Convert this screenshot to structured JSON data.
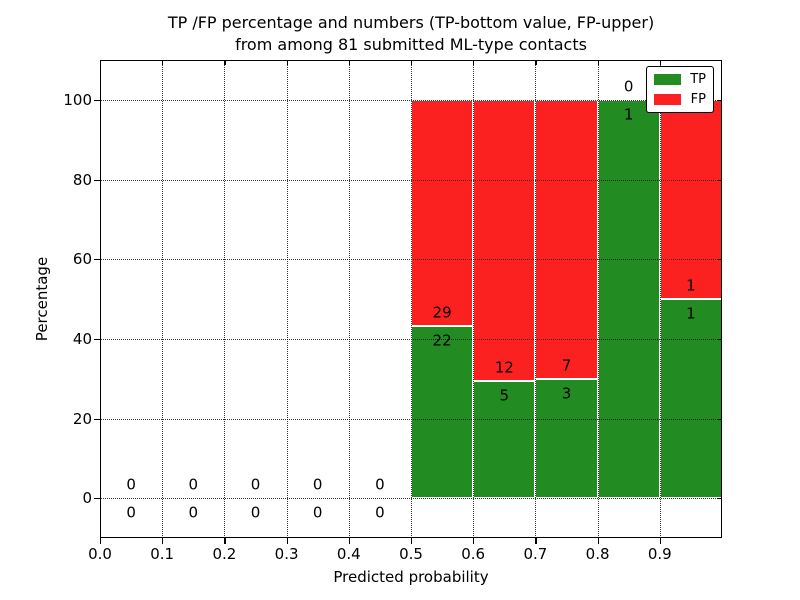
{
  "figure": {
    "title_line1": "TP /FP percentage and numbers (TP-bottom value, FP-upper)",
    "title_line2": "from among 81 submitted ML-type contacts"
  },
  "chart_data": {
    "type": "bar",
    "stacked": true,
    "title": "TP /FP percentage and numbers (TP-bottom value, FP-upper) from among 81 submitted ML-type contacts",
    "xlabel": "Predicted probability",
    "ylabel": "Percentage",
    "xlim": [
      0.0,
      1.0
    ],
    "ylim": [
      -10,
      110
    ],
    "x_tick_labels": [
      "0.0",
      "0.1",
      "0.2",
      "0.3",
      "0.4",
      "0.5",
      "0.6",
      "0.7",
      "0.8",
      "0.9"
    ],
    "x_tick_values": [
      0.0,
      0.1,
      0.2,
      0.3,
      0.4,
      0.5,
      0.6,
      0.7,
      0.8,
      0.9
    ],
    "y_tick_labels": [
      "0",
      "20",
      "40",
      "60",
      "80",
      "100"
    ],
    "y_tick_values": [
      0,
      20,
      40,
      60,
      80,
      100
    ],
    "grid": "dotted both axes, drawn above bars",
    "bin_width": 0.1,
    "colors": {
      "tp": "#228b22",
      "fp": "#fb2121"
    },
    "bins": [
      {
        "x0": 0.0,
        "tp_count": 0,
        "fp_count": 0,
        "tp_pct": null,
        "fp_pct": null
      },
      {
        "x0": 0.1,
        "tp_count": 0,
        "fp_count": 0,
        "tp_pct": null,
        "fp_pct": null
      },
      {
        "x0": 0.2,
        "tp_count": 0,
        "fp_count": 0,
        "tp_pct": null,
        "fp_pct": null
      },
      {
        "x0": 0.3,
        "tp_count": 0,
        "fp_count": 0,
        "tp_pct": null,
        "fp_pct": null
      },
      {
        "x0": 0.4,
        "tp_count": 0,
        "fp_count": 0,
        "tp_pct": null,
        "fp_pct": null
      },
      {
        "x0": 0.5,
        "tp_count": 22,
        "fp_count": 29,
        "tp_pct": 43.1,
        "fp_pct": 56.9
      },
      {
        "x0": 0.6,
        "tp_count": 5,
        "fp_count": 12,
        "tp_pct": 29.4,
        "fp_pct": 70.6
      },
      {
        "x0": 0.7,
        "tp_count": 3,
        "fp_count": 7,
        "tp_pct": 30.0,
        "fp_pct": 70.0
      },
      {
        "x0": 0.8,
        "tp_count": 1,
        "fp_count": 0,
        "tp_pct": 100.0,
        "fp_pct": 0.0
      },
      {
        "x0": 0.9,
        "tp_count": 1,
        "fp_count": 1,
        "tp_pct": 50.0,
        "fp_pct": 50.0
      }
    ],
    "legend": {
      "position": "upper right",
      "entries": [
        {
          "label": "TP",
          "color": "#228b22"
        },
        {
          "label": "FP",
          "color": "#fb2121"
        }
      ]
    }
  }
}
